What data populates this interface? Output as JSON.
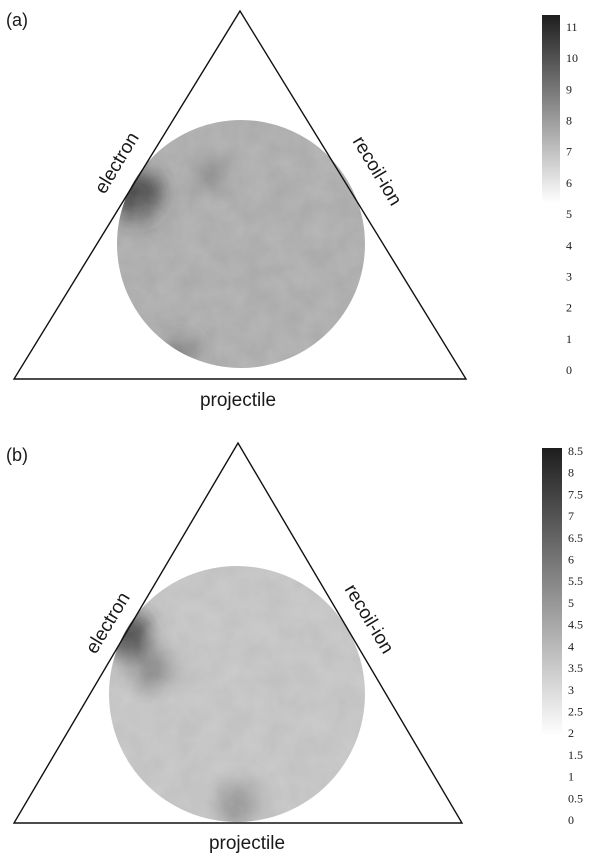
{
  "chart_data": [
    {
      "type": "heatmap",
      "panel_label": "(a)",
      "vertex_labels": {
        "left_edge": "electron",
        "right_edge": "recoil-ion",
        "bottom_edge": "projectile"
      },
      "colorbar": {
        "ticks": [
          "11",
          "10",
          "9",
          "8",
          "7",
          "6",
          "5",
          "4",
          "3",
          "2",
          "1",
          "0"
        ],
        "range": [
          0,
          11
        ],
        "gradient_range": [
          5.3,
          11
        ],
        "colors": {
          "low": "#ffffff",
          "high": "#1e1e1e"
        }
      },
      "disk": {
        "base_value": 7.5,
        "hot_spots": [
          {
            "label": "electron-edge",
            "value": 10.5
          },
          {
            "label": "bottom-left",
            "value": 9.5
          },
          {
            "label": "upper-middle",
            "value": 8.5
          }
        ]
      }
    },
    {
      "type": "heatmap",
      "panel_label": "(b)",
      "vertex_labels": {
        "left_edge": "electron",
        "right_edge": "recoil-ion",
        "bottom_edge": "projectile"
      },
      "colorbar": {
        "ticks": [
          "8.5",
          "8",
          "7.5",
          "7",
          "6.5",
          "6",
          "5.5",
          "5",
          "4.5",
          "4",
          "3.5",
          "3",
          "2.5",
          "2",
          "1.5",
          "1",
          "0.5",
          "0"
        ],
        "range": [
          0,
          8.5
        ],
        "gradient_range": [
          2.2,
          8.5
        ],
        "colors": {
          "low": "#ffffff",
          "high": "#1e1e1e"
        }
      },
      "disk": {
        "base_value": 4.0,
        "hot_spots": [
          {
            "label": "electron-edge",
            "value": 8.0
          },
          {
            "label": "left",
            "value": 6.0
          },
          {
            "label": "bottom",
            "value": 5.5
          }
        ]
      }
    }
  ]
}
